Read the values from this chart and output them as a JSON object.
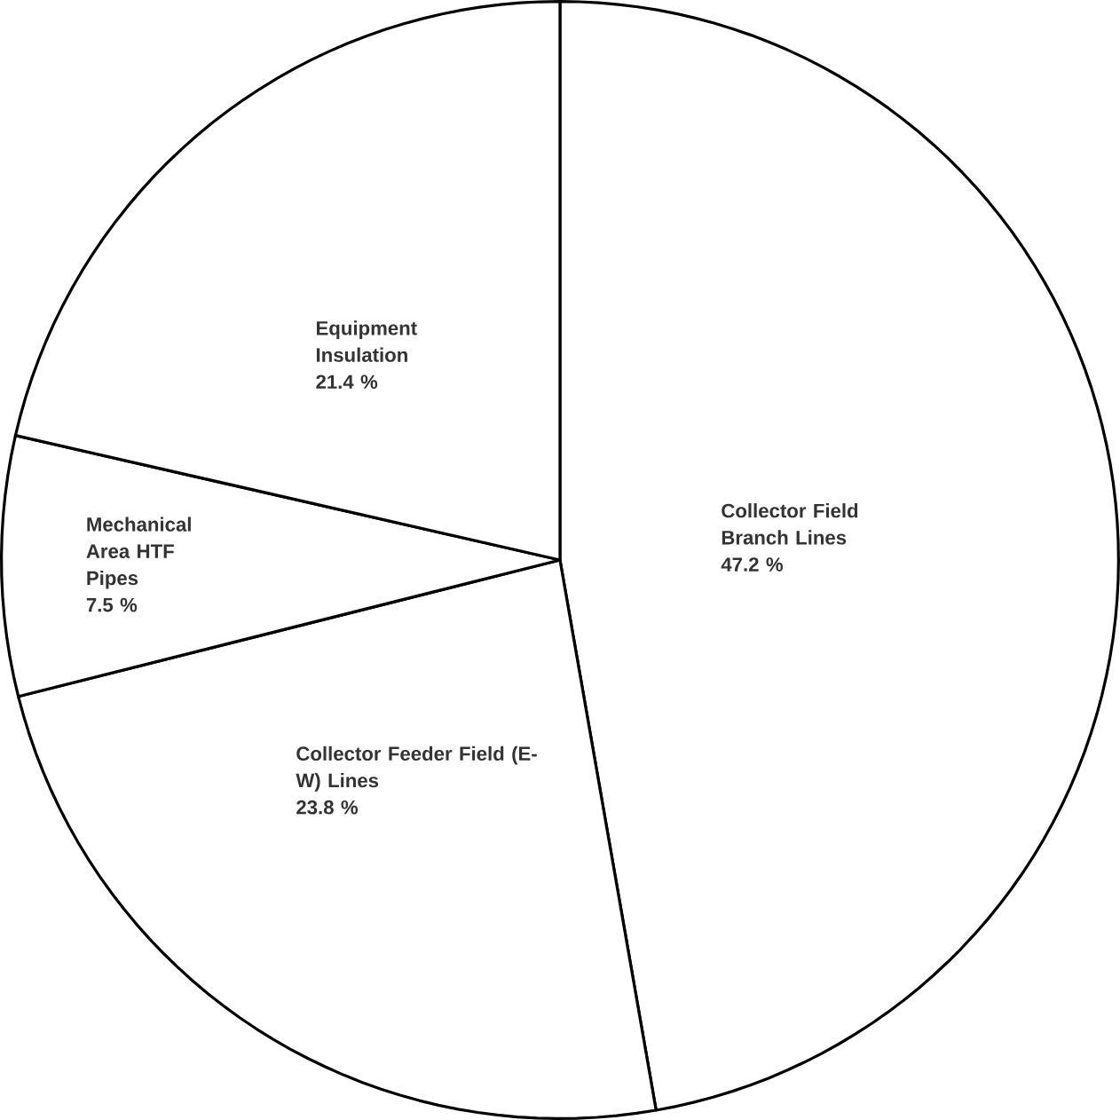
{
  "chart_data": {
    "type": "pie",
    "categories": [
      "Collector Field Branch Lines",
      "Collector Feeder Field (E-W) Lines",
      "Mechanical Area HTF Pipes",
      "Equipment Insulation"
    ],
    "values": [
      47.2,
      23.8,
      7.5,
      21.4
    ],
    "value_labels": [
      "47.2 %",
      "23.8 %",
      "7.5 %",
      "21.4 %"
    ],
    "colors": [
      "#ffffff",
      "#ffffff",
      "#ffffff",
      "#ffffff"
    ]
  }
}
